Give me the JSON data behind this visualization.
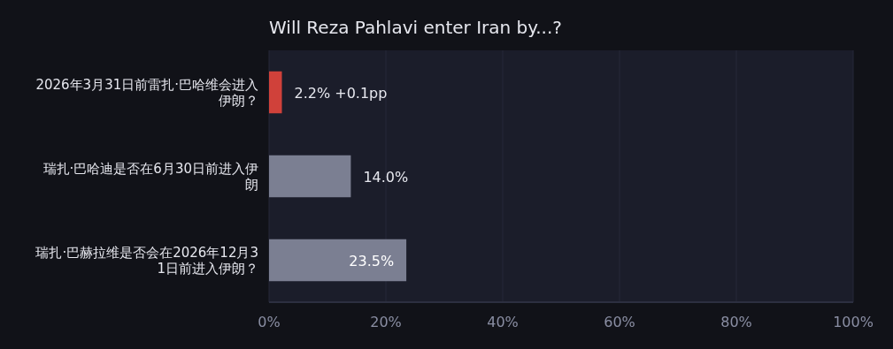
{
  "chart_data": {
    "type": "bar",
    "orientation": "horizontal",
    "title": "Will Reza Pahlavi enter Iran by...?",
    "categories": [
      "2026年3月31日前雷扎·巴哈维会进入伊朗？",
      "瑞扎·巴哈迪是否在6月30日前进入伊朗",
      "瑞扎·巴赫拉维是否会在2026年12月31日前进入伊朗？"
    ],
    "values": [
      2.2,
      14.0,
      23.5
    ],
    "colors": [
      "#d0413a",
      "#7b7f92",
      "#7b7f92"
    ],
    "value_labels": [
      "2.2% +0.1pp",
      "14.0%",
      "23.5%"
    ],
    "xlim": [
      0,
      100
    ],
    "xticks": [
      {
        "value": 0,
        "label": "0%"
      },
      {
        "value": 20,
        "label": "20%"
      },
      {
        "value": 40,
        "label": "40%"
      },
      {
        "value": 60,
        "label": "60%"
      },
      {
        "value": 80,
        "label": "80%"
      },
      {
        "value": 100,
        "label": "100%"
      }
    ],
    "grid": "x"
  }
}
